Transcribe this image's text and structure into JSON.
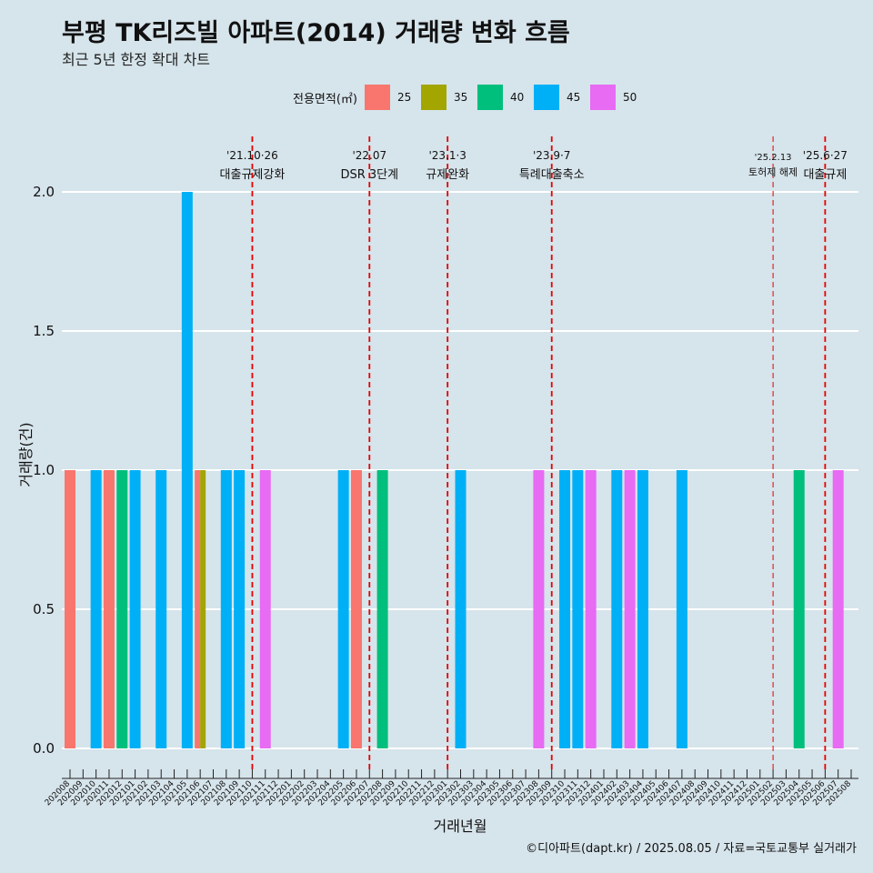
{
  "header": {
    "title": "부평 TK리즈빌 아파트(2014) 거래량 변화 흐름",
    "subtitle": "최근 5년 한정 확대 차트"
  },
  "legend": {
    "title": "전용면적(㎡)",
    "items": [
      {
        "label": "25",
        "color": "#f8766d"
      },
      {
        "label": "35",
        "color": "#a3a500"
      },
      {
        "label": "40",
        "color": "#00bf7d"
      },
      {
        "label": "45",
        "color": "#00b0f6"
      },
      {
        "label": "50",
        "color": "#e76bf3"
      }
    ]
  },
  "caption": "©디아파트(dapt.kr) / 2025.08.05 / 자료=국토교통부 실거래가",
  "chart_data": {
    "type": "bar",
    "xlabel": "거래년월",
    "ylabel": "거래량(건)",
    "ylim": [
      0,
      2
    ],
    "yticks": [
      "0.0",
      "0.5",
      "1.0",
      "1.5",
      "2.0"
    ],
    "categories": [
      "202008",
      "202009",
      "202010",
      "202011",
      "202012",
      "202101",
      "202102",
      "202103",
      "202104",
      "202105",
      "202106",
      "202107",
      "202108",
      "202109",
      "202110",
      "202111",
      "202112",
      "202201",
      "202202",
      "202203",
      "202204",
      "202205",
      "202206",
      "202207",
      "202208",
      "202209",
      "202210",
      "202211",
      "202212",
      "202301",
      "202302",
      "202303",
      "202304",
      "202305",
      "202306",
      "202307",
      "202308",
      "202309",
      "202310",
      "202311",
      "202312",
      "202401",
      "202402",
      "202403",
      "202404",
      "202405",
      "202406",
      "202407",
      "202408",
      "202409",
      "202410",
      "202411",
      "202412",
      "202501",
      "202502",
      "202503",
      "202504",
      "202505",
      "202506",
      "202507",
      "202508"
    ],
    "bars": [
      {
        "month": "202008",
        "area": "25",
        "value": 1
      },
      {
        "month": "202010",
        "area": "45",
        "value": 1
      },
      {
        "month": "202011",
        "area": "25",
        "value": 1
      },
      {
        "month": "202012",
        "area": "40",
        "value": 1
      },
      {
        "month": "202101",
        "area": "45",
        "value": 1
      },
      {
        "month": "202103",
        "area": "45",
        "value": 1
      },
      {
        "month": "202105",
        "area": "45",
        "value": 2
      },
      {
        "month": "202106",
        "area": "25",
        "value": 1
      },
      {
        "month": "202106",
        "area": "35",
        "value": 1
      },
      {
        "month": "202108",
        "area": "45",
        "value": 1
      },
      {
        "month": "202109",
        "area": "45",
        "value": 1
      },
      {
        "month": "202111",
        "area": "50",
        "value": 1
      },
      {
        "month": "202205",
        "area": "45",
        "value": 1
      },
      {
        "month": "202206",
        "area": "25",
        "value": 1
      },
      {
        "month": "202208",
        "area": "40",
        "value": 1
      },
      {
        "month": "202302",
        "area": "45",
        "value": 1
      },
      {
        "month": "202308",
        "area": "50",
        "value": 1
      },
      {
        "month": "202310",
        "area": "45",
        "value": 1
      },
      {
        "month": "202311",
        "area": "45",
        "value": 1
      },
      {
        "month": "202312",
        "area": "50",
        "value": 1
      },
      {
        "month": "202402",
        "area": "45",
        "value": 1
      },
      {
        "month": "202403",
        "area": "50",
        "value": 1
      },
      {
        "month": "202404",
        "area": "45",
        "value": 1
      },
      {
        "month": "202407",
        "area": "45",
        "value": 1
      },
      {
        "month": "202504",
        "area": "40",
        "value": 1
      },
      {
        "month": "202507",
        "area": "50",
        "value": 1
      }
    ],
    "annotations": [
      {
        "x": "202110",
        "date": "'21.10·26",
        "text": "대출규제강화"
      },
      {
        "x": "202207",
        "date": "'22.07",
        "text": "DSR 3단계"
      },
      {
        "x": "202301",
        "date": "'23.1·3",
        "text": "규제완화"
      },
      {
        "x": "202309",
        "date": "'23.9·7",
        "text": "특례대출축소"
      },
      {
        "x": "202502",
        "date": "'25.2.13",
        "text": "토허제 해제"
      },
      {
        "x": "202506",
        "date": "'25.6·27",
        "text": "대출규제"
      }
    ]
  }
}
